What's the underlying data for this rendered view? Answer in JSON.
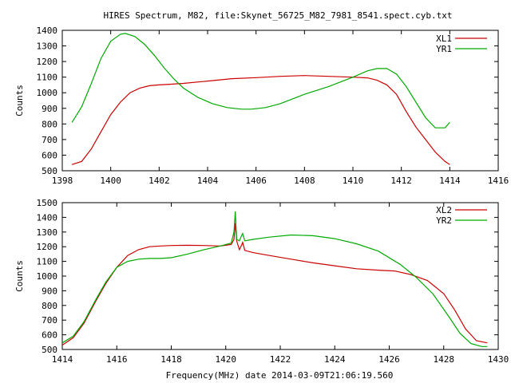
{
  "title": "HIRES Spectrum, M82, file:Skynet_56725_M82_7981_8541.spect.cyb.txt",
  "colors": {
    "xl": "#cc0000",
    "yr": "#00aa00"
  },
  "chart_data": [
    {
      "type": "line",
      "ylabel": "Counts",
      "xlim": [
        1398,
        1416
      ],
      "ylim": [
        500,
        1400
      ],
      "xticks": [
        1398,
        1400,
        1402,
        1404,
        1406,
        1408,
        1410,
        1412,
        1414,
        1416
      ],
      "yticks": [
        500,
        600,
        700,
        800,
        900,
        1000,
        1100,
        1200,
        1300,
        1400
      ],
      "legend": "top-right",
      "series": [
        {
          "name": "XL1",
          "color": "#cc0000",
          "x": [
            1398.4,
            1398.8,
            1399.2,
            1399.6,
            1400.0,
            1400.4,
            1400.8,
            1401.2,
            1401.6,
            1402.0,
            1402.5,
            1403.0,
            1404.0,
            1405.0,
            1406.0,
            1407.0,
            1408.0,
            1409.0,
            1410.0,
            1410.6,
            1411.0,
            1411.4,
            1411.8,
            1412.2,
            1412.6,
            1413.0,
            1413.4,
            1413.8,
            1414.0
          ],
          "y": [
            540,
            560,
            640,
            750,
            860,
            940,
            1000,
            1030,
            1045,
            1050,
            1055,
            1060,
            1075,
            1090,
            1097,
            1105,
            1110,
            1105,
            1100,
            1095,
            1080,
            1050,
            990,
            880,
            780,
            700,
            620,
            560,
            540
          ]
        },
        {
          "name": "YR1",
          "color": "#00aa00",
          "x": [
            1398.4,
            1398.8,
            1399.2,
            1399.6,
            1400.0,
            1400.4,
            1400.6,
            1401.0,
            1401.4,
            1401.8,
            1402.2,
            1402.6,
            1403.0,
            1403.6,
            1404.2,
            1404.8,
            1405.4,
            1405.8,
            1406.4,
            1407.0,
            1408.0,
            1409.0,
            1410.0,
            1410.6,
            1411.0,
            1411.4,
            1411.8,
            1412.2,
            1412.6,
            1413.0,
            1413.4,
            1413.8,
            1414.0
          ],
          "y": [
            810,
            910,
            1060,
            1220,
            1330,
            1375,
            1380,
            1360,
            1310,
            1240,
            1160,
            1090,
            1030,
            970,
            930,
            905,
            895,
            895,
            905,
            930,
            990,
            1040,
            1100,
            1140,
            1155,
            1155,
            1120,
            1040,
            940,
            840,
            775,
            775,
            810
          ]
        }
      ]
    },
    {
      "type": "line",
      "ylabel": "Counts",
      "xlabel": "Frequency(MHz) date 2014-03-09T21:06:19.560",
      "xlim": [
        1414,
        1430
      ],
      "ylim": [
        500,
        1500
      ],
      "xticks": [
        1414,
        1416,
        1418,
        1420,
        1422,
        1424,
        1426,
        1428,
        1430
      ],
      "yticks": [
        500,
        600,
        700,
        800,
        900,
        1000,
        1100,
        1200,
        1300,
        1400,
        1500
      ],
      "legend": "top-right",
      "series": [
        {
          "name": "XL2",
          "color": "#cc0000",
          "x": [
            1414.0,
            1414.4,
            1414.8,
            1415.2,
            1415.6,
            1416.0,
            1416.4,
            1416.8,
            1417.2,
            1417.6,
            1418.0,
            1418.6,
            1419.2,
            1419.8,
            1420.2,
            1420.3,
            1420.35,
            1420.4,
            1420.5,
            1420.58,
            1420.62,
            1420.7,
            1421.0,
            1421.6,
            1422.4,
            1423.2,
            1424.0,
            1424.8,
            1425.6,
            1426.2,
            1426.8,
            1427.4,
            1428.0,
            1428.4,
            1428.8,
            1429.2,
            1429.6
          ],
          "y": [
            530,
            580,
            680,
            820,
            950,
            1060,
            1140,
            1180,
            1200,
            1205,
            1208,
            1210,
            1208,
            1205,
            1215,
            1250,
            1360,
            1240,
            1180,
            1210,
            1230,
            1175,
            1160,
            1140,
            1115,
            1090,
            1070,
            1050,
            1040,
            1035,
            1010,
            970,
            880,
            770,
            640,
            560,
            545
          ]
        },
        {
          "name": "YR2",
          "color": "#00aa00",
          "x": [
            1414.0,
            1414.4,
            1414.8,
            1415.2,
            1415.6,
            1416.0,
            1416.4,
            1416.8,
            1417.2,
            1417.6,
            1418.0,
            1418.6,
            1419.2,
            1419.8,
            1420.2,
            1420.3,
            1420.35,
            1420.4,
            1420.5,
            1420.58,
            1420.62,
            1420.7,
            1421.0,
            1421.6,
            1422.4,
            1423.2,
            1424.0,
            1424.8,
            1425.6,
            1426.4,
            1427.0,
            1427.6,
            1428.2,
            1428.6,
            1429.0,
            1429.4,
            1429.6
          ],
          "y": [
            545,
            590,
            690,
            830,
            960,
            1060,
            1100,
            1115,
            1120,
            1120,
            1125,
            1150,
            1180,
            1205,
            1225,
            1300,
            1440,
            1250,
            1240,
            1275,
            1290,
            1240,
            1250,
            1265,
            1280,
            1275,
            1255,
            1220,
            1170,
            1080,
            990,
            880,
            720,
            610,
            540,
            520,
            520
          ]
        }
      ]
    }
  ]
}
